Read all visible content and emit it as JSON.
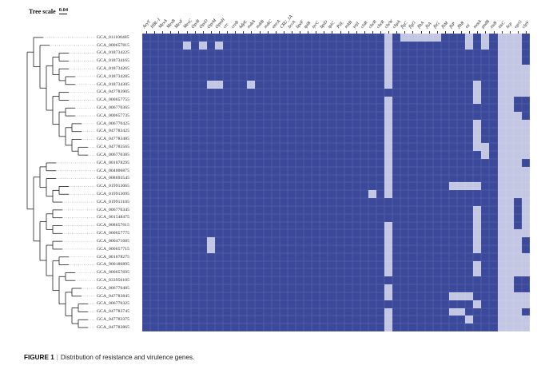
{
  "tree_scale": {
    "label": "Tree scale",
    "value": "0.04"
  },
  "caption": {
    "label": "FIGURE 1",
    "separator": "|",
    "text": "Distribution of resistance and virulence genes."
  },
  "chart_data": {
    "type": "heatmap",
    "title": "Distribution of resistance and virulence genes",
    "legend": "none shown",
    "colors": {
      "present_dark": "#3b499b",
      "absent_light": "#c4c7e3",
      "grid_line": "rgba(255,255,255,0.13)",
      "tree_stroke": "#222222"
    },
    "rows": [
      "GCA_011100485",
      "GCA_000657815",
      "GCA_018734225",
      "GCA_018734165",
      "GCA_018734265",
      "GCA_018734285",
      "GCA_018734305",
      "GCA_047783905",
      "GCA_000657755",
      "GCA_006770365",
      "GCA_000657735",
      "GCA_006770425",
      "GCA_047783425",
      "GCA_047783485",
      "GCA_047783565",
      "GCA_006770385",
      "GCA_001078295",
      "GCA_004006875",
      "GCA_008693545",
      "GCA_019913065",
      "GCA_019913095",
      "GCA_019913105",
      "GCA_006770345",
      "GCA_001548475",
      "GCA_008657615",
      "GCA_000657775",
      "GCA_000471685",
      "GCA_000657715",
      "GCA_001078275",
      "GCA_900186895",
      "GCA_000657695",
      "GCA_033956105",
      "GCA_006770405",
      "GCA_047783845",
      "GCA_006770325",
      "GCA_047783745",
      "GCA_047783375",
      "GCA_047783865"
    ],
    "columns": [
      "AxyY",
      "HBL-1",
      "MexA",
      "MexB",
      "MexF",
      "MexC",
      "OprB",
      "OprD",
      "OprM",
      "OpmH",
      "crc",
      "creB",
      "kdpE",
      "mdtA",
      "mdtB",
      "mdtC",
      "emrA",
      "CRU_1A",
      "bcrA",
      "bpeF",
      "tpiB",
      "tycC",
      "bpiD",
      "tpiC",
      "PilL",
      "mltB",
      "yojI",
      "clsB",
      "cheB",
      "cheR",
      "cheW",
      "chpA",
      "flgC",
      "flgG",
      "flhA",
      "fliA",
      "fliG",
      "fliM",
      "fliP",
      "flhB",
      "tsi",
      "motA",
      "pndB",
      "tssB",
      "tssC",
      "hcp",
      "vgrG",
      "clpV"
    ],
    "cell_values": "1 = light (absent), 0 = dark (present); light cell column indices per row (1-based)",
    "light_cells": [
      [
        31,
        33,
        34,
        35,
        36,
        37,
        41,
        43,
        45,
        46,
        47
      ],
      [
        6,
        8,
        10,
        31,
        41,
        43,
        45,
        46,
        47
      ],
      [
        31,
        45,
        46,
        47
      ],
      [
        31,
        45,
        46,
        47
      ],
      [
        31,
        45,
        46,
        47,
        48
      ],
      [
        31,
        45,
        46,
        47,
        48
      ],
      [
        9,
        10,
        14,
        31,
        42,
        45,
        46,
        47,
        48
      ],
      [
        42,
        45,
        46,
        47,
        48
      ],
      [
        31,
        42,
        45,
        46
      ],
      [
        31,
        45,
        46
      ],
      [
        31,
        45,
        46,
        47
      ],
      [
        31,
        42,
        45,
        46,
        47,
        48
      ],
      [
        31,
        42,
        45,
        46,
        47,
        48
      ],
      [
        31,
        42,
        45,
        46,
        47,
        48
      ],
      [
        31,
        42,
        43,
        45,
        46,
        47,
        48
      ],
      [
        31,
        43,
        45,
        46,
        47,
        48
      ],
      [
        31,
        45,
        46,
        47
      ],
      [
        31,
        45,
        46,
        47,
        48
      ],
      [
        31,
        45,
        46,
        47,
        48
      ],
      [
        31,
        39,
        40,
        41,
        42,
        45,
        46,
        47,
        48
      ],
      [
        29,
        31,
        45,
        46,
        47,
        48
      ],
      [
        45,
        46,
        48
      ],
      [
        42,
        45,
        46,
        48
      ],
      [
        42,
        45,
        46,
        48
      ],
      [
        31,
        42,
        45,
        46,
        48
      ],
      [
        31,
        42,
        45,
        46,
        47,
        48
      ],
      [
        9,
        31,
        42,
        45,
        46,
        47
      ],
      [
        9,
        31,
        42,
        45,
        46,
        47
      ],
      [
        31,
        45,
        46,
        47,
        48
      ],
      [
        31,
        42,
        45,
        46,
        47,
        48
      ],
      [
        31,
        42,
        45,
        46,
        47,
        48
      ],
      [
        45,
        46
      ],
      [
        31,
        45,
        46
      ],
      [
        31,
        39,
        40,
        41,
        45,
        46,
        47,
        48
      ],
      [
        42,
        45,
        46,
        47,
        48
      ],
      [
        31,
        39,
        40,
        45,
        46,
        47
      ],
      [
        31,
        41,
        45,
        46,
        47,
        48
      ],
      [
        31,
        45,
        46,
        47,
        48
      ]
    ],
    "tree": {
      "orientation": "left",
      "topology": [
        [
          1,
          [
            2,
            [
              [
                [
                  3,
                  4
                ],
                [
                  5,
                  [
                    6,
                    7
                  ]
                ]
              ],
              [
                [
                  8,
                  9
                ],
                [
                  [
                    10,
                    11
                  ],
                  [
                    [
                      12,
                      13
                    ],
                    [
                      14,
                      [
                        15,
                        16
                      ]
                    ]
                  ]
                ]
              ]
            ]
          ]
        ],
        [
          [
            [
              17,
              18
            ],
            [
              19,
              [
                [
                  20,
                  21
                ],
                22
              ]
            ]
          ],
          [
            [
              [
                23,
                24
              ],
              [
                25,
                26
              ]
            ],
            [
              [
                27,
                28
              ],
              [
                [
                  29,
                  30
                ],
                [
                  [
                    31,
                    32
                  ],
                  [
                    [
                      33,
                      34
                    ],
                    [
                      [
                        35,
                        36
                      ],
                      [
                        37,
                        38
                      ]
                    ]
                  ]
                ]
              ]
            ]
          ]
        ]
      ]
    }
  }
}
